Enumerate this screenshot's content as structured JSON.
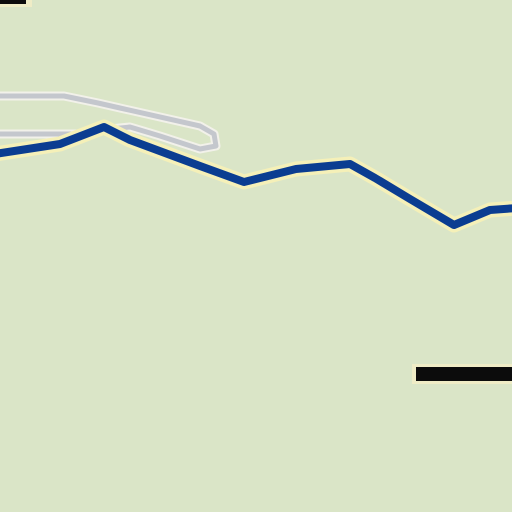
{
  "map": {
    "land_color": "#dae5c7",
    "features": [
      {
        "name": "secondary-road",
        "color": "#c4c7cd",
        "casing_color": "#f2f1ea"
      },
      {
        "name": "primary-road",
        "color": "#0b3d91",
        "casing_color": "#f5f0b8"
      },
      {
        "name": "black-bar",
        "color": "#0c0c0c",
        "casing_color": "#efecc6"
      },
      {
        "name": "corner-marker",
        "color": "#0c0c0c",
        "casing_color": "#efecc6"
      }
    ]
  }
}
